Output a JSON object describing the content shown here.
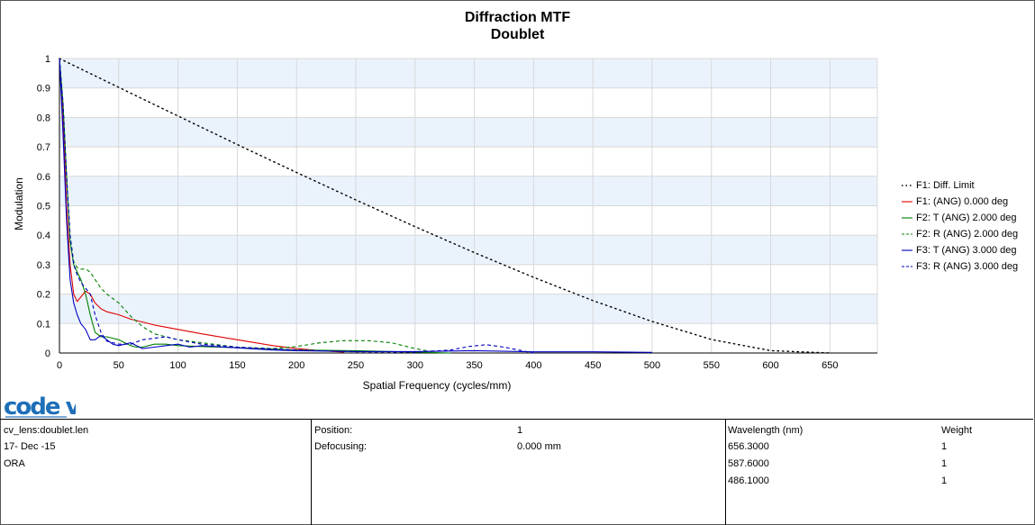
{
  "chart_data": {
    "type": "line",
    "title": "Diffraction MTF",
    "subtitle": "Doublet",
    "xlabel": "Spatial Frequency (cycles/mm)",
    "ylabel": "Modulation",
    "xlim": [
      0,
      690
    ],
    "ylim": [
      0,
      1
    ],
    "xticks": [
      0,
      50,
      100,
      150,
      200,
      250,
      300,
      350,
      400,
      450,
      500,
      550,
      600,
      650
    ],
    "yticks": [
      0,
      0.1,
      0.2,
      0.3,
      0.4,
      0.5,
      0.6,
      0.7,
      0.8,
      0.9,
      1
    ],
    "grid": true,
    "legend_position": "right",
    "series": [
      {
        "name": "F1: Diff. Limit",
        "color": "#000000",
        "dash": "dot",
        "x": [
          0,
          50,
          100,
          150,
          200,
          250,
          300,
          350,
          400,
          450,
          500,
          550,
          600,
          650
        ],
        "y": [
          1,
          0.902,
          0.805,
          0.708,
          0.613,
          0.52,
          0.429,
          0.341,
          0.257,
          0.178,
          0.107,
          0.046,
          0.008,
          0
        ]
      },
      {
        "name": "F1: (ANG) 0.000 deg",
        "color": "#e00000",
        "dash": "solid",
        "x": [
          0,
          3,
          6,
          9,
          12,
          15,
          18,
          22,
          26,
          30,
          35,
          40,
          50,
          60,
          80,
          100,
          120,
          150,
          180,
          200,
          220,
          240
        ],
        "y": [
          1,
          0.8,
          0.5,
          0.3,
          0.2,
          0.175,
          0.19,
          0.21,
          0.2,
          0.17,
          0.15,
          0.14,
          0.13,
          0.115,
          0.095,
          0.08,
          0.065,
          0.045,
          0.025,
          0.015,
          0.008,
          0.003
        ]
      },
      {
        "name": "F2: T (ANG) 2.000 deg",
        "color": "#008000",
        "dash": "solid",
        "x": [
          0,
          3,
          6,
          9,
          12,
          15,
          18,
          22,
          26,
          30,
          35,
          40,
          45,
          50,
          55,
          60,
          65,
          70,
          80,
          90,
          100,
          120,
          150,
          200,
          250,
          300,
          330
        ],
        "y": [
          1,
          0.85,
          0.6,
          0.38,
          0.3,
          0.275,
          0.25,
          0.2,
          0.13,
          0.07,
          0.055,
          0.055,
          0.05,
          0.045,
          0.035,
          0.025,
          0.02,
          0.02,
          0.03,
          0.03,
          0.025,
          0.022,
          0.018,
          0.01,
          0.008,
          0.003,
          0
        ]
      },
      {
        "name": "F2: R (ANG) 2.000 deg",
        "color": "#008000",
        "dash": "dash",
        "x": [
          0,
          3,
          6,
          9,
          12,
          15,
          18,
          22,
          26,
          30,
          35,
          40,
          50,
          60,
          70,
          80,
          100,
          120,
          150,
          180,
          200,
          220,
          240,
          260,
          280,
          300,
          320
        ],
        "y": [
          1,
          0.85,
          0.6,
          0.4,
          0.31,
          0.29,
          0.285,
          0.285,
          0.275,
          0.25,
          0.22,
          0.2,
          0.17,
          0.125,
          0.09,
          0.065,
          0.045,
          0.035,
          0.02,
          0.015,
          0.022,
          0.035,
          0.042,
          0.042,
          0.035,
          0.015,
          0
        ]
      },
      {
        "name": "F3: T (ANG) 3.000 deg",
        "color": "#0000c0",
        "dash": "solid",
        "x": [
          0,
          3,
          6,
          9,
          12,
          15,
          18,
          22,
          26,
          30,
          35,
          40,
          45,
          50,
          55,
          60,
          65,
          70,
          80,
          90,
          100,
          110,
          120,
          140,
          160,
          180,
          200,
          250,
          300,
          350,
          400,
          450,
          500
        ],
        "y": [
          1,
          0.75,
          0.45,
          0.25,
          0.17,
          0.13,
          0.1,
          0.08,
          0.045,
          0.045,
          0.06,
          0.045,
          0.03,
          0.025,
          0.03,
          0.035,
          0.025,
          0.015,
          0.02,
          0.025,
          0.03,
          0.02,
          0.025,
          0.02,
          0.015,
          0.01,
          0.008,
          0.005,
          0.005,
          0.008,
          0.004,
          0.004,
          0.002
        ]
      },
      {
        "name": "F3: R (ANG) 3.000 deg",
        "color": "#0000c0",
        "dash": "dash",
        "x": [
          0,
          3,
          6,
          9,
          12,
          15,
          18,
          22,
          26,
          30,
          35,
          40,
          50,
          60,
          70,
          80,
          90,
          100,
          120,
          150,
          200,
          250,
          300,
          330,
          345,
          360,
          375,
          390,
          400
        ],
        "y": [
          1,
          0.85,
          0.6,
          0.4,
          0.3,
          0.265,
          0.24,
          0.22,
          0.2,
          0.13,
          0.07,
          0.04,
          0.03,
          0.03,
          0.045,
          0.05,
          0.055,
          0.045,
          0.03,
          0.02,
          0.01,
          0.004,
          0.003,
          0.01,
          0.022,
          0.028,
          0.02,
          0.008,
          0
        ]
      }
    ]
  },
  "logo": {
    "text": "code v"
  },
  "info": {
    "lens_file": "cv_lens:doublet.len",
    "date": "17- Dec -15",
    "org": "ORA",
    "position_label": "Position:",
    "position_value": "1",
    "defocusing_label": "Defocusing:",
    "defocusing_value": "0.000 mm",
    "wavelength_header": "Wavelength (nm)",
    "weight_header": "Weight",
    "wavelengths": [
      {
        "wavelength": "656.3000",
        "weight": "1"
      },
      {
        "wavelength": "587.6000",
        "weight": "1"
      },
      {
        "wavelength": "486.1000",
        "weight": "1"
      }
    ]
  }
}
